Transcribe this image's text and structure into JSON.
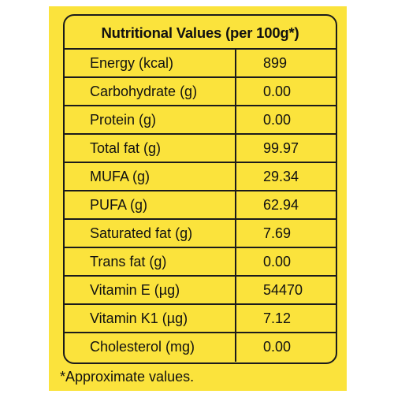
{
  "table": {
    "title": "Nutritional Values (per 100g*)",
    "rows": [
      {
        "label": "Energy (kcal)",
        "value": "899"
      },
      {
        "label": "Carbohydrate (g)",
        "value": "0.00"
      },
      {
        "label": "Protein (g)",
        "value": "0.00"
      },
      {
        "label": "Total fat (g)",
        "value": "99.97"
      },
      {
        "label": "MUFA (g)",
        "value": "29.34"
      },
      {
        "label": "PUFA (g)",
        "value": "62.94"
      },
      {
        "label": "Saturated fat (g)",
        "value": "7.69"
      },
      {
        "label": "Trans fat (g)",
        "value": "0.00"
      },
      {
        "label": "Vitamin E (µg)",
        "value": "54470"
      },
      {
        "label": "Vitamin K1 (µg)",
        "value": "7.12"
      },
      {
        "label": "Cholesterol (mg)",
        "value": "0.00"
      }
    ]
  },
  "footnote": "*Approximate values.",
  "colors": {
    "panel_background": "#fbe33c",
    "border": "#1b1b1b",
    "text": "#111111"
  }
}
